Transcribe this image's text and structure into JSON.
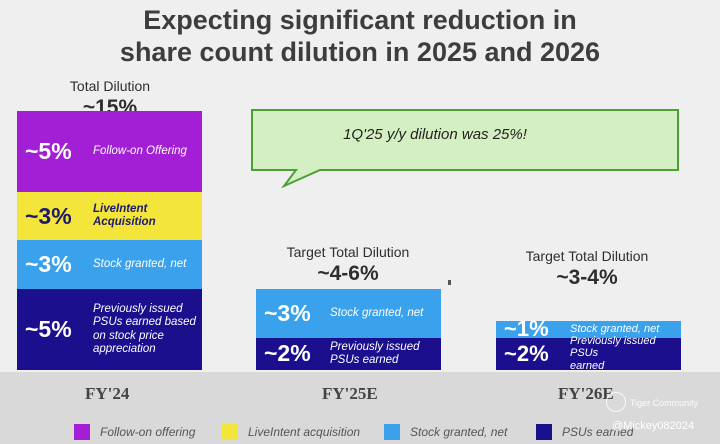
{
  "chart_data": {
    "type": "bar",
    "stacked": true,
    "title_lines": [
      "Expecting significant reduction in",
      "share count dilution in 2025 and 2026"
    ],
    "categories": [
      "FY'24",
      "FY'25E",
      "FY'26E"
    ],
    "columns": [
      {
        "category": "FY'24",
        "header_label": "Total Dilution",
        "header_value": "~15%",
        "total": 15,
        "segments": [
          {
            "series": "Follow-on offering",
            "value": 5,
            "label": "~5%",
            "desc": [
              "Follow-on Offering"
            ]
          },
          {
            "series": "LiveIntent acquisition",
            "value": 3,
            "label": "~3%",
            "desc": [
              "LiveIntent",
              "Acquisition"
            ]
          },
          {
            "series": "Stock granted, net",
            "value": 3,
            "label": "~3%",
            "desc": [
              "Stock granted, net"
            ]
          },
          {
            "series": "PSUs earned",
            "value": 5,
            "label": "~5%",
            "desc": [
              "Previously issued",
              "PSUs earned based",
              "on stock price",
              "appreciation"
            ]
          }
        ]
      },
      {
        "category": "FY'25E",
        "header_label": "Target Total Dilution",
        "header_value": "~4-6%",
        "total": 5,
        "segments": [
          {
            "series": "Stock granted, net",
            "value": 3,
            "label": "~3%",
            "desc": [
              "Stock granted, net"
            ]
          },
          {
            "series": "PSUs earned",
            "value": 2,
            "label": "~2%",
            "desc": [
              "Previously issued",
              "PSUs earned"
            ]
          }
        ]
      },
      {
        "category": "FY'26E",
        "header_label": "Target Total Dilution",
        "header_value": "~3-4%",
        "total": 3,
        "segments": [
          {
            "series": "Stock granted, net",
            "value": 1,
            "label": "~1%",
            "desc": [
              "Stock granted, net"
            ]
          },
          {
            "series": "PSUs earned",
            "value": 2,
            "label": "~2%",
            "desc": [
              "Previously issued PSUs",
              "earned"
            ]
          }
        ]
      }
    ],
    "legend": [
      {
        "name": "Follow-on offering",
        "color": "#a21fd6"
      },
      {
        "name": "LiveIntent acquisition",
        "color": "#f4e53a"
      },
      {
        "name": "Stock granted, net",
        "color": "#3aa2ec"
      },
      {
        "name": "PSUs earned",
        "color": "#1b0f8e"
      }
    ],
    "annotation": "1Q'25 y/y dilution was 25%!"
  },
  "colors": {
    "follow_on": "#a21fd6",
    "liveintent": "#f4e53a",
    "stock_granted": "#3aa2ec",
    "psus": "#1b0f8e",
    "callout_fill": "#d4efc2",
    "callout_stroke": "#4aa032"
  },
  "watermark": {
    "brand": "Tiger Community",
    "handle": "@Mickey082024"
  }
}
